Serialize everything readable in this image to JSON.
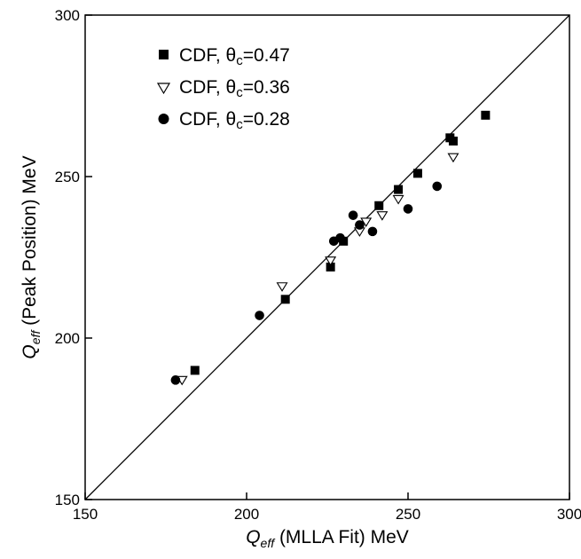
{
  "chart_data": {
    "type": "scatter",
    "xlabel": {
      "q": "Q",
      "sub": "eff",
      "rest": " (MLLA Fit)  MeV"
    },
    "ylabel": {
      "q": "Q",
      "sub": "eff",
      "rest": " (Peak Position)  MeV"
    },
    "xlim": [
      150,
      300
    ],
    "ylim": [
      150,
      300
    ],
    "xticks": [
      150,
      200,
      250,
      300
    ],
    "yticks": [
      150,
      200,
      250,
      300
    ],
    "grid": false,
    "legend_position": "top-left",
    "reference_line": {
      "from": [
        150,
        150
      ],
      "to": [
        300,
        300
      ]
    },
    "series": [
      {
        "name": {
          "prefix": "CDF, ",
          "theta": "θ",
          "sub": "c",
          "suffix": "=0.47"
        },
        "marker": "square",
        "points": [
          [
            184,
            190
          ],
          [
            212,
            212
          ],
          [
            226,
            222
          ],
          [
            230,
            230
          ],
          [
            241,
            241
          ],
          [
            247,
            246
          ],
          [
            253,
            251
          ],
          [
            263,
            262
          ],
          [
            264,
            261
          ],
          [
            274,
            269
          ]
        ]
      },
      {
        "name": {
          "prefix": "CDF, ",
          "theta": "θ",
          "sub": "c",
          "suffix": "=0.36"
        },
        "marker": "triangle-down",
        "points": [
          [
            180,
            187
          ],
          [
            211,
            216
          ],
          [
            226,
            224
          ],
          [
            235,
            233
          ],
          [
            237,
            236
          ],
          [
            242,
            238
          ],
          [
            247,
            243
          ],
          [
            264,
            256
          ]
        ]
      },
      {
        "name": {
          "prefix": "CDF, ",
          "theta": "θ",
          "sub": "c",
          "suffix": "=0.28"
        },
        "marker": "circle",
        "points": [
          [
            178,
            187
          ],
          [
            204,
            207
          ],
          [
            227,
            230
          ],
          [
            229,
            231
          ],
          [
            233,
            238
          ],
          [
            235,
            235
          ],
          [
            239,
            233
          ],
          [
            250,
            240
          ],
          [
            259,
            247
          ]
        ]
      }
    ]
  }
}
